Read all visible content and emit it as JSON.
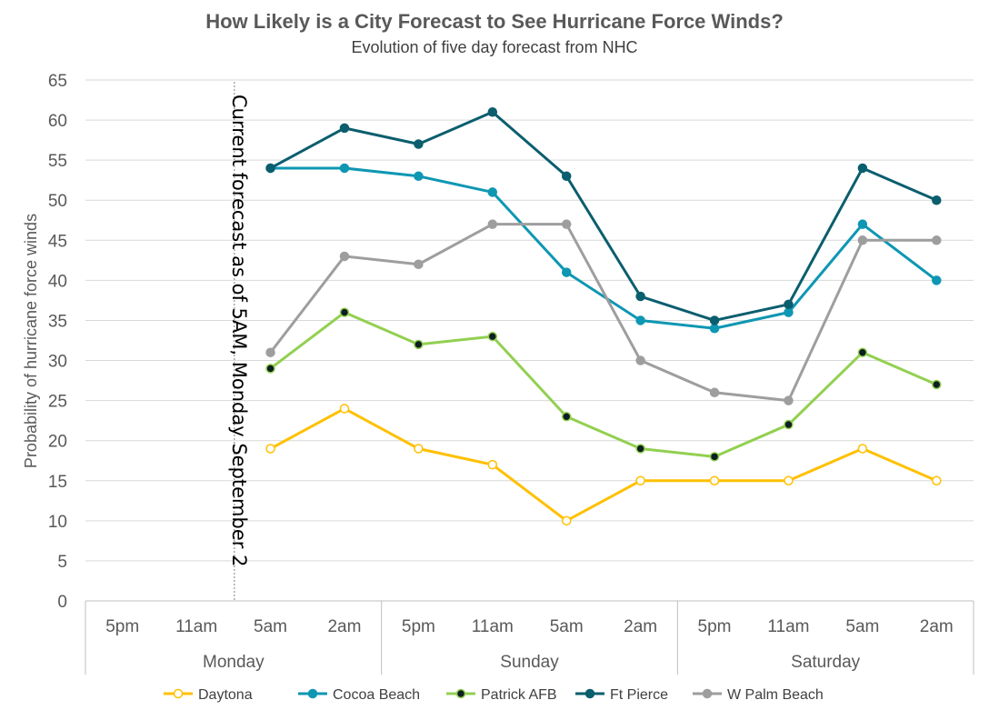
{
  "chart_data": {
    "type": "line",
    "title": "How  Likely is a City Forecast to See Hurricane Force Winds?",
    "subtitle": "Evolution of five day forecast from NHC",
    "ylabel": "Probability of hurricane  force winds",
    "ylim": [
      0,
      65
    ],
    "yticks": [
      0,
      5,
      10,
      15,
      20,
      25,
      30,
      35,
      40,
      45,
      50,
      55,
      60,
      65
    ],
    "grid": true,
    "categories": [
      "5pm",
      "11am",
      "5am",
      "2am",
      "5pm",
      "11am",
      "5am",
      "2am",
      "5pm",
      "11am",
      "5am",
      "2am"
    ],
    "groups": [
      {
        "label": "Monday",
        "span": 4
      },
      {
        "label": "Sunday",
        "span": 4
      },
      {
        "label": "Saturday",
        "span": 4
      }
    ],
    "annotation": {
      "text": "Current forecast as of 5AM, Monday September 2",
      "category_index": 2
    },
    "legend_position": "bottom",
    "series": [
      {
        "name": "Daytona",
        "color": "#FFC000",
        "marker": "hollow",
        "values": [
          null,
          null,
          19,
          24,
          19,
          17,
          10,
          15,
          15,
          15,
          19,
          15
        ]
      },
      {
        "name": "Cocoa Beach",
        "color": "#0E97B3",
        "marker": "solid",
        "values": [
          null,
          null,
          54,
          54,
          53,
          51,
          41,
          35,
          34,
          36,
          47,
          40
        ]
      },
      {
        "name": "Patrick AFB",
        "color": "#92D050",
        "marker": "dark",
        "values": [
          null,
          null,
          29,
          36,
          32,
          33,
          23,
          19,
          18,
          22,
          31,
          27
        ]
      },
      {
        "name": "Ft Pierce",
        "color": "#0B5E6E",
        "marker": "solid",
        "values": [
          null,
          null,
          54,
          59,
          57,
          61,
          53,
          38,
          35,
          37,
          54,
          50
        ]
      },
      {
        "name": "W Palm Beach",
        "color": "#9E9E9E",
        "marker": "solid",
        "values": [
          null,
          null,
          31,
          43,
          42,
          47,
          47,
          30,
          26,
          25,
          45,
          45
        ]
      }
    ]
  }
}
